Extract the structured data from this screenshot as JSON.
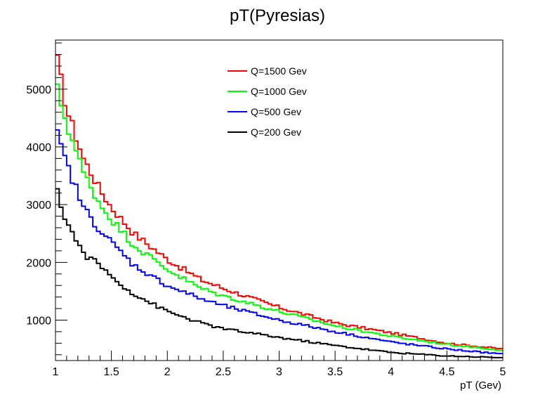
{
  "chart_data": {
    "type": "line",
    "style": "histogram-step",
    "title": "pT(Pyresias)",
    "xlabel": "pT (Gev)",
    "ylabel": "",
    "xlim": [
      1,
      5
    ],
    "ylim": [
      300,
      5850
    ],
    "bins": 120,
    "x_ticks": [
      "1",
      "1.5",
      "2",
      "2.5",
      "3",
      "3.5",
      "4",
      "4.5",
      "5"
    ],
    "y_ticks": [
      "1000",
      "2000",
      "3000",
      "4000",
      "5000"
    ],
    "grid": false,
    "legend": "top-center",
    "series": [
      {
        "name": "Q=1500 Gev",
        "color": "#ff0000",
        "anchors_x": [
          1.0,
          1.1,
          1.25,
          1.4,
          1.5,
          1.7,
          2.0,
          2.3,
          2.5,
          2.8,
          3.0,
          3.5,
          4.0,
          4.5,
          5.0
        ],
        "anchors_y": [
          5650,
          4650,
          3800,
          3250,
          2950,
          2500,
          2050,
          1700,
          1550,
          1350,
          1220,
          950,
          780,
          600,
          500
        ]
      },
      {
        "name": "Q=1000 Gev",
        "color": "#00ff00",
        "anchors_x": [
          1.0,
          1.1,
          1.25,
          1.4,
          1.5,
          1.7,
          2.0,
          2.3,
          2.5,
          2.8,
          3.0,
          3.5,
          4.0,
          4.5,
          5.0
        ],
        "anchors_y": [
          5100,
          4400,
          3550,
          3000,
          2750,
          2300,
          1880,
          1550,
          1420,
          1260,
          1150,
          900,
          720,
          580,
          480
        ]
      },
      {
        "name": "Q=500 Gev",
        "color": "#0000ff",
        "anchors_x": [
          1.0,
          1.1,
          1.25,
          1.4,
          1.5,
          1.7,
          2.0,
          2.3,
          2.5,
          2.8,
          3.0,
          3.5,
          4.0,
          4.5,
          5.0
        ],
        "anchors_y": [
          4300,
          3700,
          2950,
          2550,
          2350,
          1950,
          1600,
          1370,
          1250,
          1100,
          1000,
          800,
          620,
          500,
          410
        ]
      },
      {
        "name": "Q=200 Gev",
        "color": "#000000",
        "anchors_x": [
          1.0,
          1.1,
          1.25,
          1.4,
          1.5,
          1.7,
          2.0,
          2.3,
          2.5,
          2.8,
          3.0,
          3.5,
          4.0,
          4.5,
          5.0
        ],
        "anchors_y": [
          3300,
          2700,
          2150,
          1950,
          1750,
          1450,
          1150,
          950,
          850,
          760,
          700,
          560,
          440,
          380,
          350
        ]
      }
    ]
  }
}
